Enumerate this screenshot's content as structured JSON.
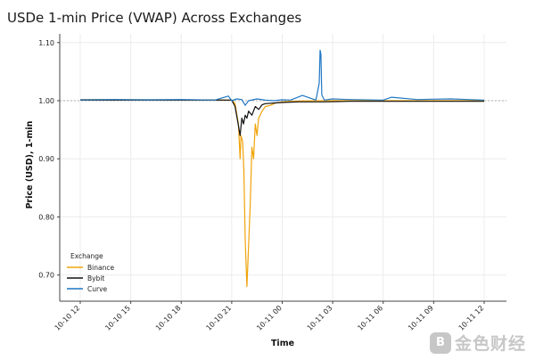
{
  "chart_data": {
    "type": "line",
    "title": "USDe 1-min Price (VWAP) Across Exchanges",
    "xlabel": "Time",
    "ylabel": "Price (USD), 1-min",
    "ylim": [
      0.655,
      1.115
    ],
    "xlim": [
      "10-10 12",
      "10-11 12"
    ],
    "y_ticks": [
      "0.70",
      "0.80",
      "0.90",
      "1.00",
      "1.10"
    ],
    "y_tick_values": [
      0.7,
      0.8,
      0.9,
      1.0,
      1.1
    ],
    "x_ticks": [
      "10-10 12",
      "10-10 15",
      "10-10 18",
      "10-10 21",
      "10-11 00",
      "10-11 03",
      "10-11 06",
      "10-11 09",
      "10-11 12"
    ],
    "x_tick_hours": [
      0,
      3,
      6,
      9,
      12,
      15,
      18,
      21,
      24
    ],
    "reference_line": 1.0,
    "grid": true,
    "legend": {
      "title": "Exchange",
      "placement": "bottom-left"
    },
    "series": [
      {
        "name": "Binance",
        "color": "#f0a30a",
        "x_hours": [
          0,
          9,
          9.2,
          9.4,
          9.5,
          9.55,
          9.65,
          9.72,
          9.8,
          9.9,
          10.0,
          10.1,
          10.2,
          10.3,
          10.4,
          10.5,
          10.6,
          10.8,
          11.0,
          11.3,
          11.6,
          12.0,
          12.5,
          14,
          24
        ],
        "y": [
          1.002,
          1.001,
          0.995,
          0.96,
          0.9,
          0.94,
          0.93,
          0.88,
          0.76,
          0.68,
          0.75,
          0.82,
          0.92,
          0.9,
          0.96,
          0.94,
          0.97,
          0.982,
          0.99,
          0.992,
          0.996,
          0.998,
          0.999,
          1.0,
          1.0
        ]
      },
      {
        "name": "Bybit",
        "color": "#111111",
        "x_hours": [
          0,
          9,
          9.2,
          9.35,
          9.5,
          9.6,
          9.7,
          9.8,
          9.9,
          10.0,
          10.2,
          10.4,
          10.6,
          10.8,
          11.0,
          11.5,
          12.0,
          13,
          14.5,
          16,
          24
        ],
        "y": [
          1.001,
          1.001,
          0.99,
          0.965,
          0.94,
          0.97,
          0.96,
          0.975,
          0.97,
          0.982,
          0.975,
          0.99,
          0.985,
          0.993,
          0.995,
          0.996,
          0.997,
          0.998,
          0.998,
          0.999,
          0.999
        ]
      },
      {
        "name": "Curve",
        "color": "#1f77c4",
        "x_hours": [
          0,
          2,
          4,
          6,
          8,
          8.8,
          9.0,
          9.3,
          9.6,
          9.8,
          10.0,
          10.5,
          11.0,
          11.5,
          12.0,
          12.5,
          13.2,
          14.0,
          14.2,
          14.25,
          14.3,
          14.35,
          14.5,
          15,
          16,
          18,
          18.5,
          20,
          22,
          24
        ],
        "y": [
          1.0015,
          1.002,
          1.0015,
          1.002,
          1.001,
          1.008,
          1.0,
          1.003,
          1.002,
          0.992,
          1.0,
          1.003,
          1.001,
          1.0,
          1.0015,
          1.001,
          1.009,
          1.001,
          1.03,
          1.087,
          1.08,
          1.01,
          1.001,
          1.003,
          1.002,
          1.001,
          1.006,
          1.002,
          1.003,
          1.001
        ]
      }
    ]
  },
  "watermark": {
    "badge": "B",
    "text": "金色财经"
  }
}
